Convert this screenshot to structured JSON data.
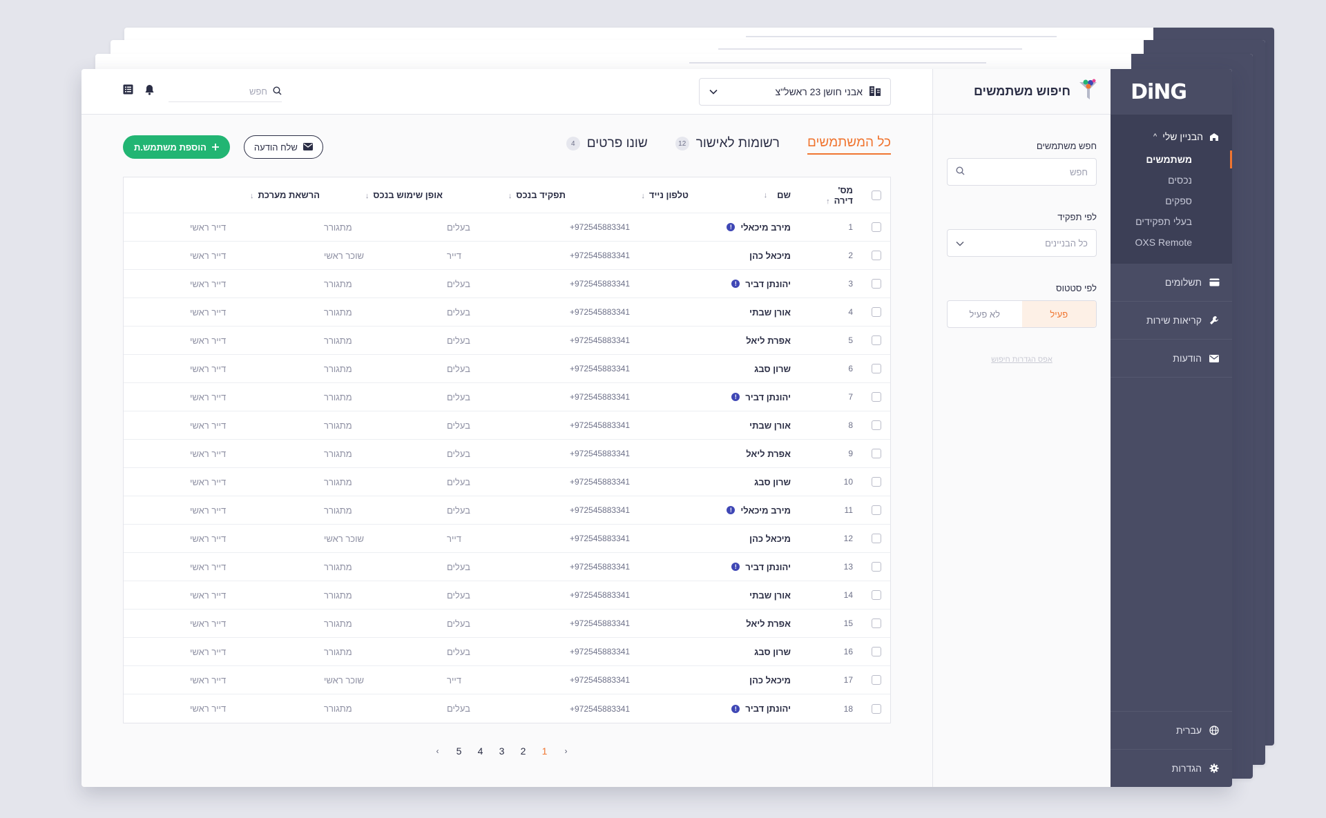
{
  "app": {
    "logo": "DiNG"
  },
  "sidebar": {
    "group": {
      "label": "הבניין שלי",
      "caret": "^"
    },
    "sub_items": [
      {
        "label": "משתמשים",
        "active": true
      },
      {
        "label": "נכסים"
      },
      {
        "label": "ספקים"
      },
      {
        "label": "בעלי תפקידים"
      },
      {
        "label": "OXS Remote"
      }
    ],
    "items": [
      {
        "label": "תשלומים",
        "icon": "credit-card-icon"
      },
      {
        "label": "קריאות שירות",
        "icon": "wrench-icon"
      },
      {
        "label": "הודעות",
        "icon": "envelope-icon"
      }
    ],
    "bottom": [
      {
        "label": "עברית",
        "icon": "globe-icon"
      },
      {
        "label": "הגדרות",
        "icon": "gear-icon"
      }
    ]
  },
  "filters": {
    "title": "חיפוש משתמשים",
    "search_label": "חפש משתמשים",
    "search_placeholder": "חפש",
    "role_label": "לפי תפקיד",
    "role_value": "כל הבניינים",
    "status_label": "לפי סטטוס",
    "status_active": "פעיל",
    "status_inactive": "לא פעיל",
    "reset": "אפס הגדרות חיפוש"
  },
  "topbar": {
    "building": "אבני חושן 23 ראשל\"צ",
    "search_placeholder": "חפש"
  },
  "tabs": [
    {
      "label": "כל המשתמשים",
      "active": true
    },
    {
      "label": "רשומות לאישור",
      "badge": "12"
    },
    {
      "label": "שונו פרטים",
      "badge": "4"
    }
  ],
  "actions": {
    "send_message": "שלח הודעה",
    "add_user": "הוספת משתמש.ת"
  },
  "table": {
    "columns": [
      "מס' דירה",
      "שם",
      "טלפון נייד",
      "תפקיד בנכס",
      "אופן שימוש בנכס",
      "הרשאת מערכת"
    ],
    "sort_marks": [
      "↑",
      "↓",
      "↓",
      "↓",
      "↓",
      "↓"
    ],
    "rows": [
      {
        "num": "1",
        "name": "מירב מיכאלי",
        "warn": true,
        "phone": "+972545883341",
        "role": "בעלים",
        "use": "מתגורר",
        "perm": "דייר ראשי"
      },
      {
        "num": "2",
        "name": "מיכאל כהן",
        "warn": false,
        "phone": "+972545883341",
        "role": "דייר",
        "use": "שוכר ראשי",
        "perm": "דייר ראשי"
      },
      {
        "num": "3",
        "name": "יהונתן דביר",
        "warn": true,
        "phone": "+972545883341",
        "role": "בעלים",
        "use": "מתגורר",
        "perm": "דייר ראשי"
      },
      {
        "num": "4",
        "name": "אורן שבתי",
        "warn": false,
        "phone": "+972545883341",
        "role": "בעלים",
        "use": "מתגורר",
        "perm": "דייר ראשי"
      },
      {
        "num": "5",
        "name": "אפרת ליאל",
        "warn": false,
        "phone": "+972545883341",
        "role": "בעלים",
        "use": "מתגורר",
        "perm": "דייר ראשי"
      },
      {
        "num": "6",
        "name": "שרון סבג",
        "warn": false,
        "phone": "+972545883341",
        "role": "בעלים",
        "use": "מתגורר",
        "perm": "דייר ראשי"
      },
      {
        "num": "7",
        "name": "יהונתן דביר",
        "warn": true,
        "phone": "+972545883341",
        "role": "בעלים",
        "use": "מתגורר",
        "perm": "דייר ראשי"
      },
      {
        "num": "8",
        "name": "אורן שבתי",
        "warn": false,
        "phone": "+972545883341",
        "role": "בעלים",
        "use": "מתגורר",
        "perm": "דייר ראשי"
      },
      {
        "num": "9",
        "name": "אפרת ליאל",
        "warn": false,
        "phone": "+972545883341",
        "role": "בעלים",
        "use": "מתגורר",
        "perm": "דייר ראשי"
      },
      {
        "num": "10",
        "name": "שרון סבג",
        "warn": false,
        "phone": "+972545883341",
        "role": "בעלים",
        "use": "מתגורר",
        "perm": "דייר ראשי"
      },
      {
        "num": "11",
        "name": "מירב מיכאלי",
        "warn": true,
        "phone": "+972545883341",
        "role": "בעלים",
        "use": "מתגורר",
        "perm": "דייר ראשי"
      },
      {
        "num": "12",
        "name": "מיכאל כהן",
        "warn": false,
        "phone": "+972545883341",
        "role": "דייר",
        "use": "שוכר ראשי",
        "perm": "דייר ראשי"
      },
      {
        "num": "13",
        "name": "יהונתן דביר",
        "warn": true,
        "phone": "+972545883341",
        "role": "בעלים",
        "use": "מתגורר",
        "perm": "דייר ראשי"
      },
      {
        "num": "14",
        "name": "אורן שבתי",
        "warn": false,
        "phone": "+972545883341",
        "role": "בעלים",
        "use": "מתגורר",
        "perm": "דייר ראשי"
      },
      {
        "num": "15",
        "name": "אפרת ליאל",
        "warn": false,
        "phone": "+972545883341",
        "role": "בעלים",
        "use": "מתגורר",
        "perm": "דייר ראשי"
      },
      {
        "num": "16",
        "name": "שרון סבג",
        "warn": false,
        "phone": "+972545883341",
        "role": "בעלים",
        "use": "מתגורר",
        "perm": "דייר ראשי"
      },
      {
        "num": "17",
        "name": "מיכאל כהן",
        "warn": false,
        "phone": "+972545883341",
        "role": "דייר",
        "use": "שוכר ראשי",
        "perm": "דייר ראשי"
      },
      {
        "num": "18",
        "name": "יהונתן דביר",
        "warn": true,
        "phone": "+972545883341",
        "role": "בעלים",
        "use": "מתגורר",
        "perm": "דייר ראשי"
      }
    ]
  },
  "pagination": {
    "pages": [
      "1",
      "2",
      "3",
      "4",
      "5"
    ],
    "current": "1"
  },
  "colors": {
    "accent": "#f07530",
    "green": "#22b573",
    "sidebar": "#494c64",
    "warn": "#3f47b5"
  }
}
